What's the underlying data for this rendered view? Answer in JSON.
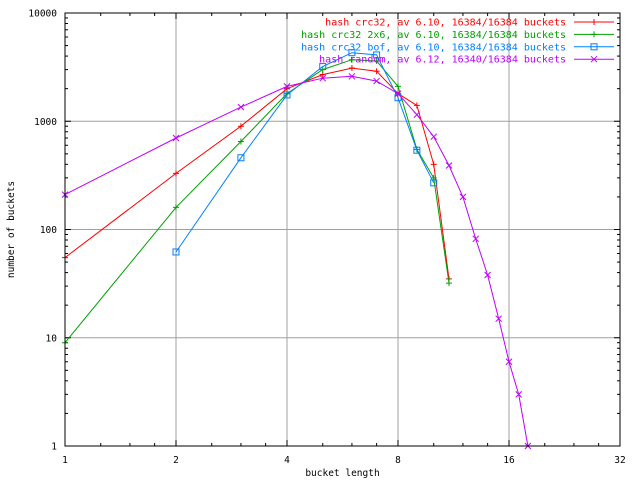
{
  "chart_data": {
    "type": "line",
    "title": "",
    "xlabel": "bucket length",
    "ylabel": "number of buckets",
    "xscale": "log2",
    "yscale": "log10",
    "xlim": [
      1,
      32
    ],
    "ylim": [
      1,
      10000
    ],
    "grid": true,
    "legend_position": "top-right",
    "x_ticks": [
      {
        "value": 1,
        "label": "1"
      },
      {
        "value": 2,
        "label": "2"
      },
      {
        "value": 4,
        "label": "4"
      },
      {
        "value": 8,
        "label": "8"
      },
      {
        "value": 16,
        "label": "16"
      },
      {
        "value": 32,
        "label": "32"
      }
    ],
    "y_ticks": [
      {
        "value": 1,
        "label": "1"
      },
      {
        "value": 10,
        "label": "10"
      },
      {
        "value": 100,
        "label": "100"
      },
      {
        "value": 1000,
        "label": "1000"
      },
      {
        "value": 10000,
        "label": "10000"
      }
    ],
    "series": [
      {
        "name": "hash crc32, av 6.10, 16384/16384 buckets",
        "color": "#ff0000",
        "marker": "plus",
        "x": [
          1,
          2,
          3,
          4,
          5,
          6,
          7,
          8,
          9,
          10,
          11
        ],
        "y": [
          55,
          330,
          900,
          2000,
          2700,
          3100,
          2900,
          1800,
          1400,
          400,
          35
        ]
      },
      {
        "name": "hash crc32 2x6, av 6.10, 16384/16384 buckets",
        "color": "#00a000",
        "marker": "plus",
        "x": [
          1,
          2,
          3,
          4,
          5,
          6,
          7,
          8,
          9,
          10,
          11
        ],
        "y": [
          9,
          160,
          650,
          1800,
          3000,
          3700,
          3600,
          2100,
          550,
          300,
          32
        ]
      },
      {
        "name": "hash crc32 bof, av 6.10, 16384/16384 buckets",
        "color": "#0080ff",
        "marker": "square",
        "x": [
          2,
          3,
          4,
          5,
          6,
          7,
          8,
          9,
          10
        ],
        "y": [
          62,
          460,
          1750,
          3200,
          4300,
          4100,
          1650,
          540,
          270
        ]
      },
      {
        "name": "hash random, av 6.12, 16340/16384 buckets",
        "color": "#c000ff",
        "marker": "x",
        "x": [
          1,
          2,
          3,
          4,
          5,
          6,
          7,
          8,
          9,
          10,
          11,
          12,
          13,
          14,
          15,
          16,
          17,
          18
        ],
        "y": [
          210,
          700,
          1350,
          2100,
          2500,
          2600,
          2350,
          1800,
          1150,
          720,
          390,
          200,
          82,
          38,
          15,
          6,
          3,
          1
        ]
      }
    ]
  }
}
